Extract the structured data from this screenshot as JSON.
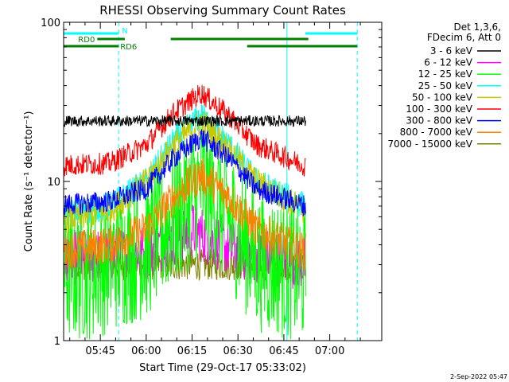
{
  "chart_data": {
    "type": "line",
    "title": "RHESSI Observing Summary Count Rates",
    "xlabel": "Start Time (29-Oct-17 05:33:02)",
    "ylabel": "Count Rate (s⁻¹ detector⁻¹)",
    "y_scale": "log",
    "ylim": [
      1,
      100
    ],
    "xlim": [
      "05:33",
      "07:17"
    ],
    "x_ticks": [
      "05:45",
      "06:00",
      "06:15",
      "06:30",
      "06:45",
      "07:00"
    ],
    "y_ticks": [
      "1",
      "10",
      "100"
    ],
    "grid": false,
    "legend": {
      "placement": "right",
      "header": [
        "Det 1,3,6,",
        "FDecim 6, Att 0"
      ]
    },
    "timestamp": "2-Sep-2022 05:47",
    "flags": [
      {
        "label": "N",
        "color": "#00ffff",
        "segments": [
          [
            "05:33",
            "05:51"
          ],
          [
            "06:52",
            "07:09"
          ]
        ]
      },
      {
        "label": "RD0",
        "color": "#007f00",
        "segments": [
          [
            "05:44",
            "05:53"
          ],
          [
            "06:08",
            "06:53"
          ]
        ]
      },
      {
        "label": "RD6",
        "color": "#007f00",
        "segments": [
          [
            "05:33",
            "05:51"
          ],
          [
            "06:33",
            "07:09"
          ]
        ]
      }
    ],
    "dashed_markers": [
      "05:51",
      "07:09"
    ],
    "solid_markers": [
      "06:46"
    ],
    "series": [
      {
        "name": "3 - 6 keV",
        "color": "#000000",
        "values": [
          [
            5.47,
            24.0
          ],
          [
            6.0,
            24.0
          ],
          [
            6.25,
            24.0
          ],
          [
            6.5,
            24.0
          ],
          [
            6.87,
            24.0
          ]
        ]
      },
      {
        "name": "6 - 12 keV",
        "color": "#ff00ff",
        "values": [
          [
            5.47,
            3.2
          ],
          [
            6.0,
            3.6
          ],
          [
            6.25,
            5.0
          ],
          [
            6.5,
            3.6
          ],
          [
            6.87,
            3.1
          ]
        ]
      },
      {
        "name": "12 - 25 keV",
        "color": "#00ff00",
        "values": [
          [
            5.47,
            2.6
          ],
          [
            5.7,
            2.8
          ],
          [
            6.0,
            3.8
          ],
          [
            6.15,
            6.0
          ],
          [
            6.3,
            9.5
          ],
          [
            6.45,
            6.0
          ],
          [
            6.6,
            3.2
          ],
          [
            6.87,
            2.6
          ]
        ]
      },
      {
        "name": "25 - 50 keV",
        "color": "#00ffff",
        "values": [
          [
            5.47,
            6.0
          ],
          [
            5.8,
            7.0
          ],
          [
            6.0,
            10.0
          ],
          [
            6.15,
            18.0
          ],
          [
            6.3,
            26.0
          ],
          [
            6.45,
            17.0
          ],
          [
            6.6,
            10.0
          ],
          [
            6.87,
            7.0
          ]
        ]
      },
      {
        "name": "50 - 100 keV",
        "color": "#c8c800",
        "values": [
          [
            5.47,
            5.5
          ],
          [
            5.8,
            6.5
          ],
          [
            6.0,
            10.0
          ],
          [
            6.15,
            17.0
          ],
          [
            6.3,
            24.0
          ],
          [
            6.45,
            16.0
          ],
          [
            6.6,
            10.0
          ],
          [
            6.87,
            6.5
          ]
        ]
      },
      {
        "name": "100 - 300 keV",
        "color": "#ff0000",
        "values": [
          [
            5.47,
            12.5
          ],
          [
            5.8,
            13.0
          ],
          [
            6.0,
            17.0
          ],
          [
            6.15,
            27.0
          ],
          [
            6.3,
            36.0
          ],
          [
            6.45,
            26.0
          ],
          [
            6.6,
            17.0
          ],
          [
            6.87,
            12.5
          ]
        ]
      },
      {
        "name": "300 - 800 keV",
        "color": "#0000ff",
        "values": [
          [
            5.47,
            7.0
          ],
          [
            5.8,
            7.5
          ],
          [
            6.0,
            9.0
          ],
          [
            6.15,
            14.0
          ],
          [
            6.3,
            19.0
          ],
          [
            6.45,
            14.0
          ],
          [
            6.6,
            9.0
          ],
          [
            6.87,
            7.0
          ]
        ]
      },
      {
        "name": "800 - 7000 keV",
        "color": "#ff8000",
        "values": [
          [
            5.47,
            3.6
          ],
          [
            5.8,
            4.0
          ],
          [
            6.0,
            5.0
          ],
          [
            6.15,
            8.0
          ],
          [
            6.3,
            11.0
          ],
          [
            6.45,
            8.0
          ],
          [
            6.6,
            5.0
          ],
          [
            6.87,
            3.6
          ]
        ]
      },
      {
        "name": "7000 - 15000 keV",
        "color": "#7f7f00",
        "values": [
          [
            5.47,
            3.0
          ],
          [
            6.0,
            3.0
          ],
          [
            6.5,
            3.0
          ],
          [
            6.87,
            3.0
          ]
        ]
      }
    ]
  }
}
